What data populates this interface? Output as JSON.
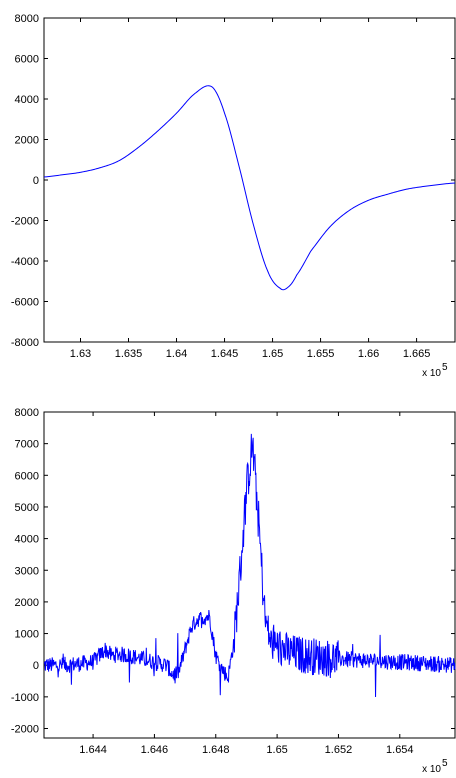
{
  "chart_data": [
    {
      "type": "line",
      "title": "",
      "xlabel": "",
      "ylabel": "",
      "x_scale_label": {
        "base": "x 10",
        "exponent": "5"
      },
      "xlim": [
        1.6262,
        1.669
      ],
      "ylim": [
        -8000,
        8000
      ],
      "xticks": [
        1.63,
        1.635,
        1.64,
        1.645,
        1.65,
        1.655,
        1.66,
        1.665
      ],
      "xtick_labels": [
        "1.63",
        "1.635",
        "1.64",
        "1.645",
        "1.65",
        "1.655",
        "1.66",
        "1.665"
      ],
      "yticks": [
        -8000,
        -6000,
        -4000,
        -2000,
        0,
        2000,
        4000,
        6000,
        8000
      ],
      "ytick_labels": [
        "-8000",
        "-6000",
        "-4000",
        "-2000",
        "0",
        "2000",
        "4000",
        "6000",
        "8000"
      ],
      "grid": false,
      "series": [
        {
          "color": "#0000ff",
          "x": [
            1.6262,
            1.628,
            1.63,
            1.632,
            1.634,
            1.636,
            1.638,
            1.64,
            1.642,
            1.6437,
            1.645,
            1.6465,
            1.648,
            1.6495,
            1.6508,
            1.6516,
            1.6525,
            1.654,
            1.656,
            1.658,
            1.66,
            1.662,
            1.664,
            1.666,
            1.669
          ],
          "y": [
            150,
            250,
            380,
            600,
            950,
            1600,
            2400,
            3300,
            4300,
            4600,
            3300,
            700,
            -2200,
            -4500,
            -5350,
            -5300,
            -4700,
            -3500,
            -2300,
            -1500,
            -1000,
            -700,
            -450,
            -300,
            -150
          ]
        }
      ]
    },
    {
      "type": "line",
      "title": "",
      "xlabel": "",
      "ylabel": "",
      "x_scale_label": {
        "base": "x 10",
        "exponent": "5"
      },
      "xlim": [
        1.6424,
        1.6558
      ],
      "ylim": [
        -2300,
        8000
      ],
      "xticks": [
        1.644,
        1.646,
        1.648,
        1.65,
        1.652,
        1.654
      ],
      "xtick_labels": [
        "1.644",
        "1.646",
        "1.648",
        "1.65",
        "1.652",
        "1.654"
      ],
      "yticks": [
        -2000,
        -1000,
        0,
        1000,
        2000,
        3000,
        4000,
        5000,
        6000,
        7000,
        8000
      ],
      "ytick_labels": [
        "-2000",
        "-1000",
        "0",
        "1000",
        "2000",
        "3000",
        "4000",
        "5000",
        "6000",
        "7000",
        "8000"
      ],
      "grid": false,
      "series": [
        {
          "color": "#0000ff",
          "x": [
            1.6424,
            1.643,
            1.6436,
            1.644,
            1.6442,
            1.6444,
            1.6446,
            1.6448,
            1.6452,
            1.6456,
            1.646,
            1.6464,
            1.6466,
            1.6468,
            1.647,
            1.6472,
            1.6474,
            1.6476,
            1.6478,
            1.648,
            1.6482,
            1.6484,
            1.6486,
            1.6488,
            1.649,
            1.6492,
            1.6494,
            1.6496,
            1.6498,
            1.65,
            1.6504,
            1.651,
            1.652,
            1.653,
            1.654,
            1.655,
            1.6558
          ],
          "y": [
            0,
            0,
            50,
            100,
            300,
            500,
            300,
            350,
            300,
            200,
            100,
            0,
            -300,
            -200,
            500,
            1200,
            1450,
            1500,
            1550,
            300,
            -100,
            -400,
            800,
            3000,
            5500,
            7000,
            4500,
            1500,
            700,
            600,
            400,
            300,
            200,
            150,
            100,
            50,
            0
          ]
        }
      ]
    }
  ]
}
